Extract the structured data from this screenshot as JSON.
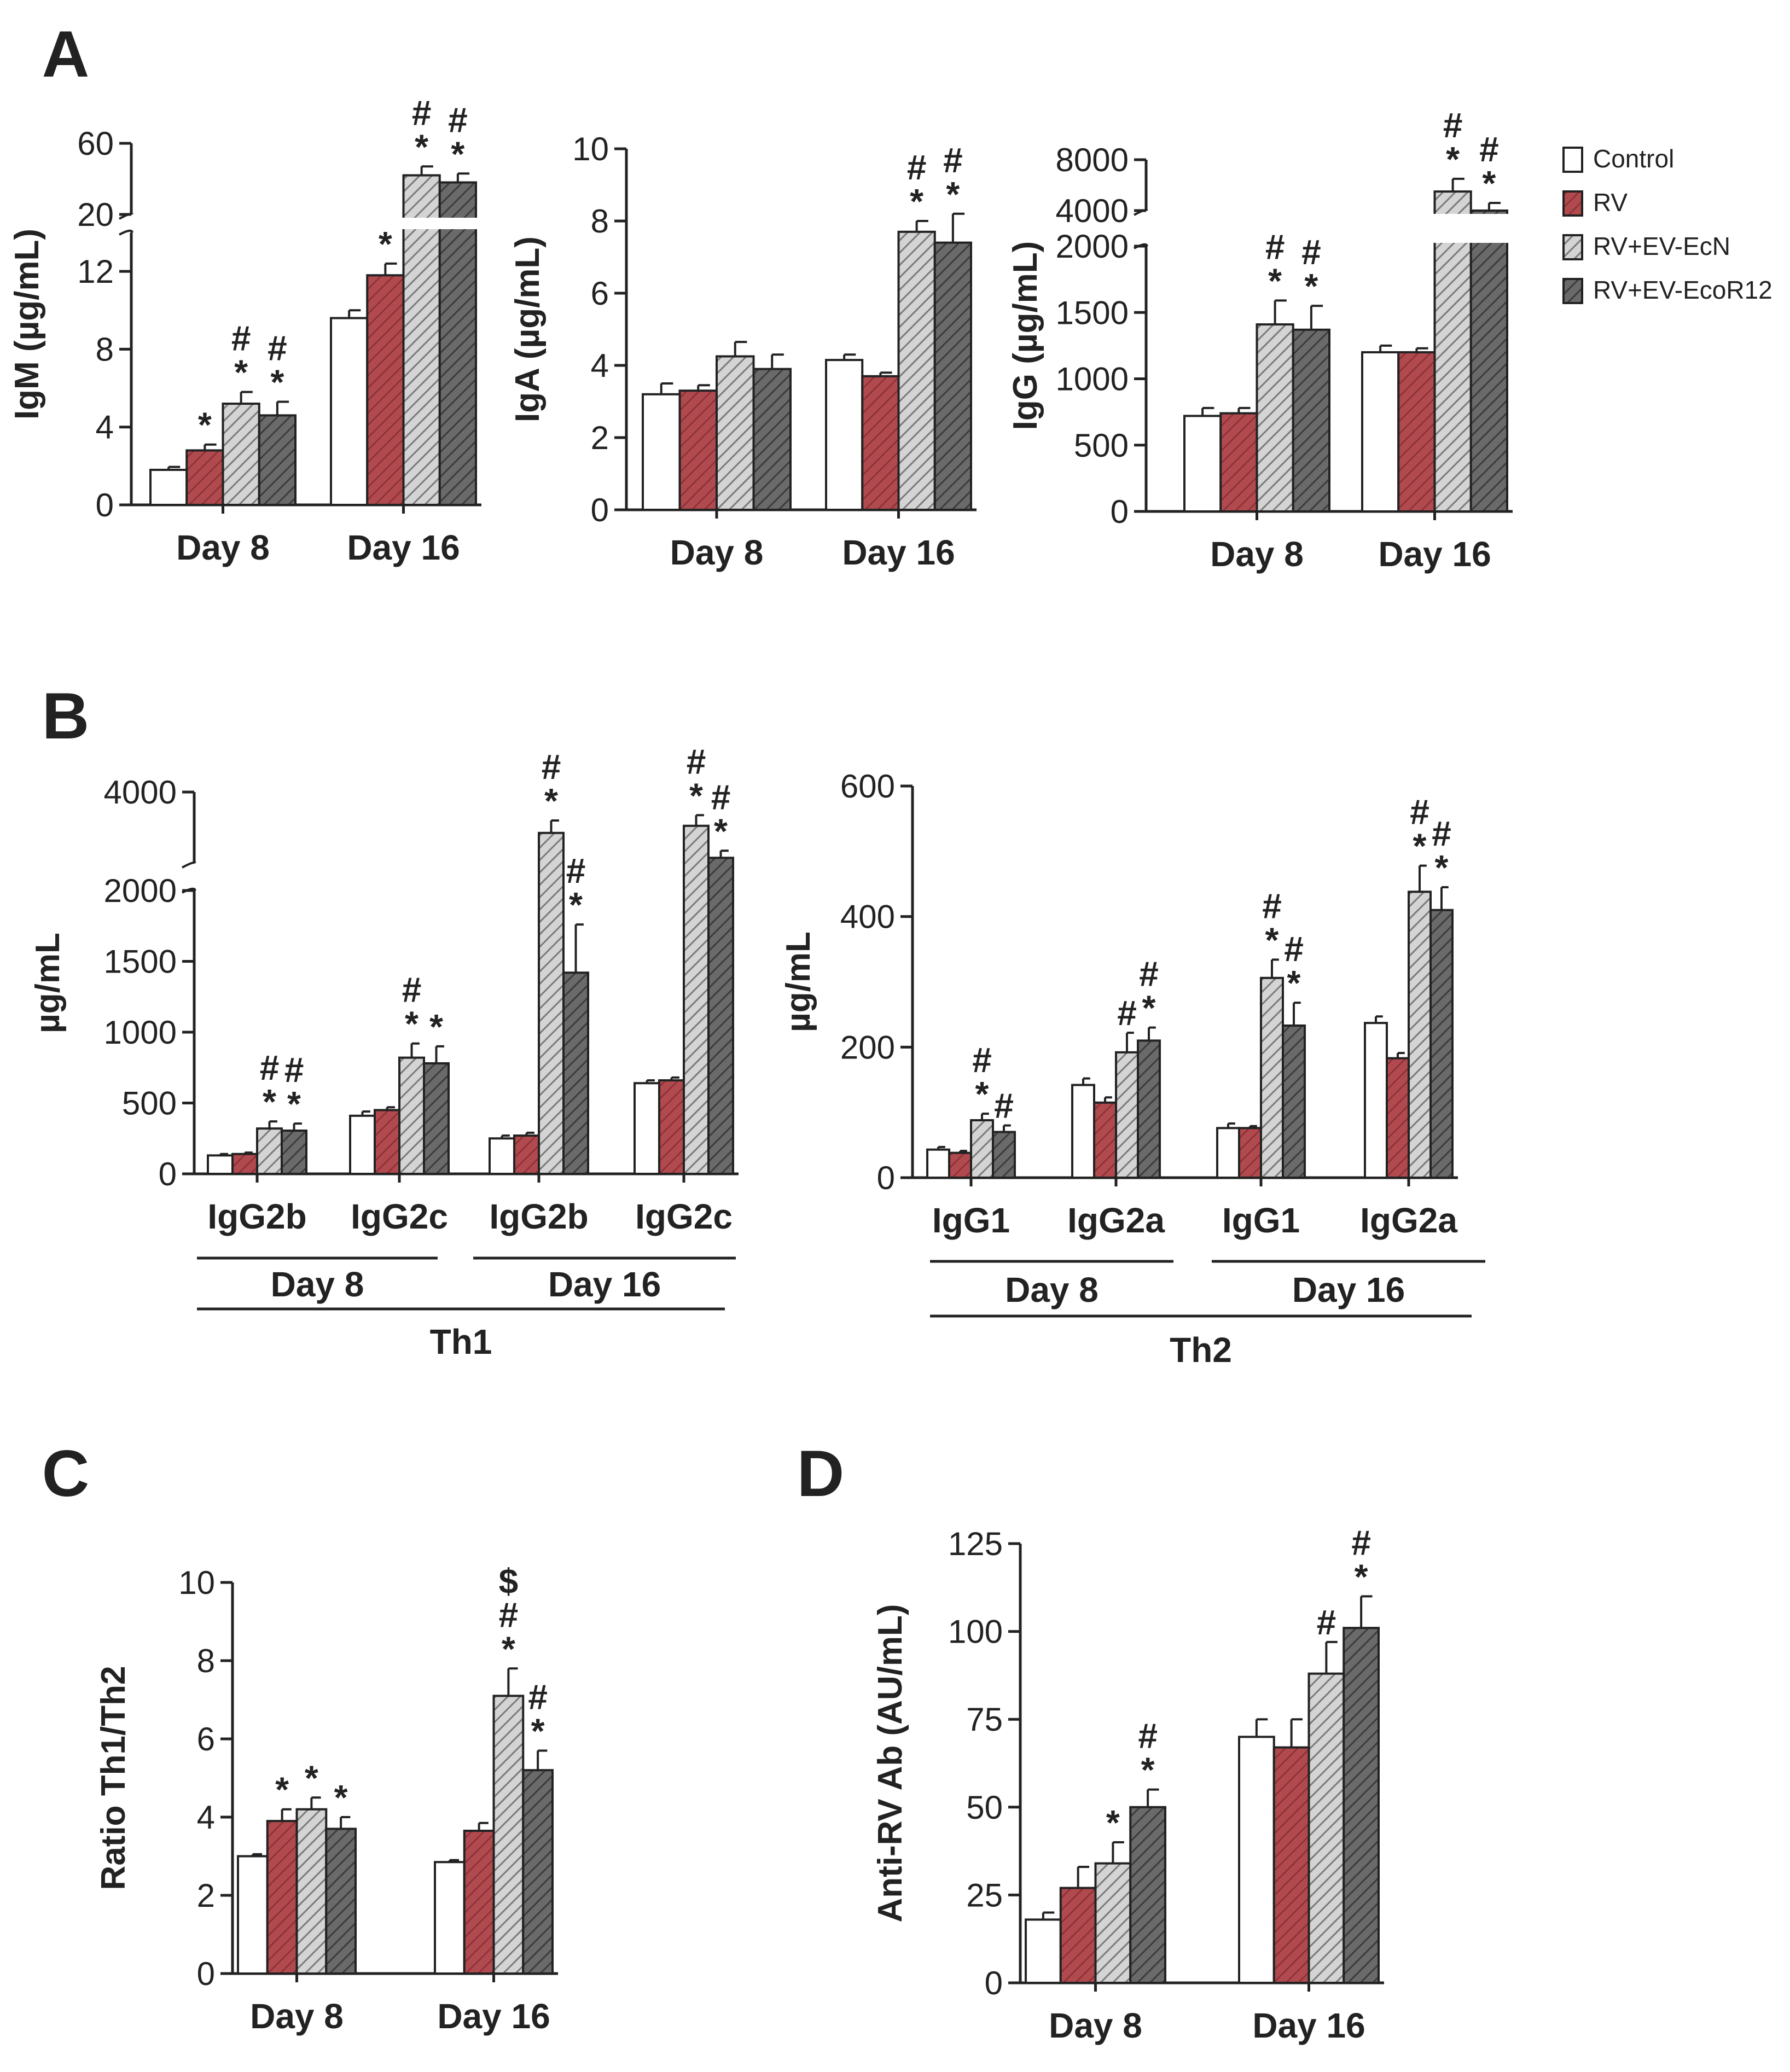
{
  "colors": {
    "control": "#ffffff",
    "rv": "#b04a4f",
    "ecn": "#bfbfbf",
    "ecor": "#606060",
    "axis": "#222222"
  },
  "legend": {
    "position": "top-right",
    "items": [
      {
        "key": "control",
        "label": "Control"
      },
      {
        "key": "rv",
        "label": "RV"
      },
      {
        "key": "ecn",
        "label": "RV+EV-EcN"
      },
      {
        "key": "ecor",
        "label": "RV+EV-EcoR12"
      }
    ]
  },
  "chart_data": [
    {
      "id": "A-IgM",
      "panel_label": "A",
      "type": "bar",
      "ylabel": "IgM (µg/mL)",
      "ylim": [
        0,
        60
      ],
      "axis_break": [
        14,
        20
      ],
      "yticks": [
        "0",
        "4",
        "8",
        "12",
        "20",
        "60"
      ],
      "groups": [
        {
          "label": "Day 8",
          "bars": [
            {
              "series": "control",
              "value": 1.8,
              "err": 0.15,
              "sig": []
            },
            {
              "series": "rv",
              "value": 2.8,
              "err": 0.3,
              "sig": [
                "*"
              ]
            },
            {
              "series": "ecn",
              "value": 5.2,
              "err": 0.6,
              "sig": [
                "#",
                "*"
              ]
            },
            {
              "series": "ecor",
              "value": 4.6,
              "err": 0.7,
              "sig": [
                "#",
                "*"
              ]
            }
          ]
        },
        {
          "label": "Day 16",
          "bars": [
            {
              "series": "control",
              "value": 9.6,
              "err": 0.4,
              "sig": []
            },
            {
              "series": "rv",
              "value": 11.8,
              "err": 0.6,
              "sig": [
                "*"
              ]
            },
            {
              "series": "ecn",
              "value": 42,
              "err": 5,
              "sig": [
                "#",
                "*"
              ]
            },
            {
              "series": "ecor",
              "value": 38,
              "err": 5,
              "sig": [
                "#",
                "*"
              ]
            }
          ]
        }
      ]
    },
    {
      "id": "A-IgA",
      "type": "bar",
      "ylabel": "IgA (µg/mL)",
      "ylim": [
        0,
        10
      ],
      "yticks": [
        "0",
        "2",
        "4",
        "6",
        "8",
        "10"
      ],
      "groups": [
        {
          "label": "Day 8",
          "bars": [
            {
              "series": "control",
              "value": 3.2,
              "err": 0.3,
              "sig": []
            },
            {
              "series": "rv",
              "value": 3.3,
              "err": 0.15,
              "sig": []
            },
            {
              "series": "ecn",
              "value": 4.25,
              "err": 0.4,
              "sig": []
            },
            {
              "series": "ecor",
              "value": 3.9,
              "err": 0.4,
              "sig": []
            }
          ]
        },
        {
          "label": "Day 16",
          "bars": [
            {
              "series": "control",
              "value": 4.15,
              "err": 0.15,
              "sig": []
            },
            {
              "series": "rv",
              "value": 3.7,
              "err": 0.1,
              "sig": []
            },
            {
              "series": "ecn",
              "value": 7.7,
              "err": 0.3,
              "sig": [
                "#",
                "*"
              ]
            },
            {
              "series": "ecor",
              "value": 7.4,
              "err": 0.8,
              "sig": [
                "#",
                "*"
              ]
            }
          ]
        }
      ]
    },
    {
      "id": "A-IgG",
      "type": "bar",
      "ylabel": "IgG (µg/mL)",
      "ylim": [
        0,
        8000
      ],
      "axis_break": [
        2000,
        4000
      ],
      "yticks": [
        "0",
        "500",
        "1000",
        "1500",
        "2000",
        "4000",
        "8000"
      ],
      "groups": [
        {
          "label": "Day 8",
          "bars": [
            {
              "series": "control",
              "value": 720,
              "err": 60,
              "sig": []
            },
            {
              "series": "rv",
              "value": 740,
              "err": 40,
              "sig": []
            },
            {
              "series": "ecn",
              "value": 1410,
              "err": 180,
              "sig": [
                "#",
                "*"
              ]
            },
            {
              "series": "ecor",
              "value": 1370,
              "err": 180,
              "sig": [
                "#",
                "*"
              ]
            }
          ]
        },
        {
          "label": "Day 16",
          "bars": [
            {
              "series": "control",
              "value": 1200,
              "err": 50,
              "sig": []
            },
            {
              "series": "rv",
              "value": 1200,
              "err": 30,
              "sig": []
            },
            {
              "series": "ecn",
              "value": 5500,
              "err": 1000,
              "sig": [
                "#",
                "*"
              ]
            },
            {
              "series": "ecor",
              "value": 4000,
              "err": 600,
              "sig": [
                "#",
                "*"
              ]
            }
          ]
        }
      ]
    },
    {
      "id": "B-Th1",
      "panel_label": "B",
      "type": "bar",
      "ylabel": "µg/mL",
      "ylim": [
        0,
        4000
      ],
      "axis_break": [
        2000,
        2000
      ],
      "yticks": [
        "0",
        "500",
        "1000",
        "1500",
        "2000",
        "4000"
      ],
      "groups": [
        {
          "label": "IgG2b",
          "bars": [
            {
              "series": "control",
              "value": 130,
              "err": 10,
              "sig": []
            },
            {
              "series": "rv",
              "value": 140,
              "err": 10,
              "sig": []
            },
            {
              "series": "ecn",
              "value": 320,
              "err": 50,
              "sig": [
                "#",
                "*"
              ]
            },
            {
              "series": "ecor",
              "value": 305,
              "err": 50,
              "sig": [
                "#",
                "*"
              ]
            }
          ]
        },
        {
          "label": "IgG2c",
          "bars": [
            {
              "series": "control",
              "value": 410,
              "err": 30,
              "sig": []
            },
            {
              "series": "rv",
              "value": 450,
              "err": 20,
              "sig": []
            },
            {
              "series": "ecn",
              "value": 820,
              "err": 100,
              "sig": [
                "#",
                "*"
              ]
            },
            {
              "series": "ecor",
              "value": 780,
              "err": 120,
              "sig": [
                "*"
              ]
            }
          ]
        },
        {
          "label": "IgG2b",
          "bars": [
            {
              "series": "control",
              "value": 250,
              "err": 20,
              "sig": []
            },
            {
              "series": "rv",
              "value": 270,
              "err": 20,
              "sig": []
            },
            {
              "series": "ecn",
              "value": 2850,
              "err": 350,
              "sig": [
                "#",
                "*"
              ]
            },
            {
              "series": "ecor",
              "value": 1420,
              "err": 340,
              "sig": [
                "#",
                "*"
              ]
            }
          ]
        },
        {
          "label": "IgG2c",
          "bars": [
            {
              "series": "control",
              "value": 640,
              "err": 20,
              "sig": []
            },
            {
              "series": "rv",
              "value": 660,
              "err": 20,
              "sig": []
            },
            {
              "series": "ecn",
              "value": 3050,
              "err": 300,
              "sig": [
                "#",
                "*"
              ]
            },
            {
              "series": "ecor",
              "value": 2150,
              "err": 200,
              "sig": [
                "#",
                "*"
              ]
            }
          ]
        }
      ],
      "brackets": [
        {
          "label": "Day 8"
        },
        {
          "label": "Day 16"
        },
        {
          "label": "Th1"
        }
      ]
    },
    {
      "id": "B-Th2",
      "type": "bar",
      "ylabel": "µg/mL",
      "ylim": [
        0,
        600
      ],
      "yticks": [
        "0",
        "200",
        "400",
        "600"
      ],
      "groups": [
        {
          "label": "IgG1",
          "bars": [
            {
              "series": "control",
              "value": 43,
              "err": 4,
              "sig": []
            },
            {
              "series": "rv",
              "value": 38,
              "err": 3,
              "sig": []
            },
            {
              "series": "ecn",
              "value": 88,
              "err": 10,
              "sig": [
                "#",
                "*"
              ]
            },
            {
              "series": "ecor",
              "value": 70,
              "err": 10,
              "sig": [
                "#"
              ]
            }
          ]
        },
        {
          "label": "IgG2a",
          "bars": [
            {
              "series": "control",
              "value": 142,
              "err": 10,
              "sig": []
            },
            {
              "series": "rv",
              "value": 115,
              "err": 8,
              "sig": []
            },
            {
              "series": "ecn",
              "value": 192,
              "err": 30,
              "sig": [
                "#"
              ]
            },
            {
              "series": "ecor",
              "value": 210,
              "err": 20,
              "sig": [
                "#",
                "*"
              ]
            }
          ]
        },
        {
          "label": "IgG1",
          "bars": [
            {
              "series": "control",
              "value": 76,
              "err": 7,
              "sig": []
            },
            {
              "series": "rv",
              "value": 76,
              "err": 3,
              "sig": []
            },
            {
              "series": "ecn",
              "value": 306,
              "err": 28,
              "sig": [
                "#",
                "*"
              ]
            },
            {
              "series": "ecor",
              "value": 233,
              "err": 35,
              "sig": [
                "#",
                "*"
              ]
            }
          ]
        },
        {
          "label": "IgG2a",
          "bars": [
            {
              "series": "control",
              "value": 237,
              "err": 10,
              "sig": []
            },
            {
              "series": "rv",
              "value": 183,
              "err": 8,
              "sig": []
            },
            {
              "series": "ecn",
              "value": 438,
              "err": 40,
              "sig": [
                "#",
                "*"
              ]
            },
            {
              "series": "ecor",
              "value": 410,
              "err": 35,
              "sig": [
                "#",
                "*"
              ]
            }
          ]
        }
      ],
      "brackets": [
        {
          "label": "Day 8"
        },
        {
          "label": "Day 16"
        },
        {
          "label": "Th2"
        }
      ]
    },
    {
      "id": "C",
      "panel_label": "C",
      "type": "bar",
      "ylabel": "Ratio Th1/Th2",
      "ylim": [
        0,
        10
      ],
      "yticks": [
        "0",
        "2",
        "4",
        "6",
        "8",
        "10"
      ],
      "groups": [
        {
          "label": "Day 8",
          "bars": [
            {
              "series": "control",
              "value": 3.0,
              "err": 0.05,
              "sig": []
            },
            {
              "series": "rv",
              "value": 3.9,
              "err": 0.3,
              "sig": [
                "*"
              ]
            },
            {
              "series": "ecn",
              "value": 4.2,
              "err": 0.3,
              "sig": [
                "*"
              ]
            },
            {
              "series": "ecor",
              "value": 3.7,
              "err": 0.3,
              "sig": [
                "*"
              ]
            }
          ]
        },
        {
          "label": "Day 16",
          "bars": [
            {
              "series": "control",
              "value": 2.85,
              "err": 0.05,
              "sig": []
            },
            {
              "series": "rv",
              "value": 3.65,
              "err": 0.2,
              "sig": []
            },
            {
              "series": "ecn",
              "value": 7.1,
              "err": 0.7,
              "sig": [
                "$",
                "#",
                "*"
              ]
            },
            {
              "series": "ecor",
              "value": 5.2,
              "err": 0.5,
              "sig": [
                "#",
                "*"
              ]
            }
          ]
        }
      ]
    },
    {
      "id": "D",
      "panel_label": "D",
      "type": "bar",
      "ylabel": "Anti-RV Ab (AU/mL)",
      "ylim": [
        0,
        125
      ],
      "yticks": [
        "0",
        "25",
        "50",
        "75",
        "100",
        "125"
      ],
      "groups": [
        {
          "label": "Day 8",
          "bars": [
            {
              "series": "control",
              "value": 18,
              "err": 2,
              "sig": []
            },
            {
              "series": "rv",
              "value": 27,
              "err": 6,
              "sig": []
            },
            {
              "series": "ecn",
              "value": 34,
              "err": 6,
              "sig": [
                "*"
              ]
            },
            {
              "series": "ecor",
              "value": 50,
              "err": 5,
              "sig": [
                "#",
                "*"
              ]
            }
          ]
        },
        {
          "label": "Day 16",
          "bars": [
            {
              "series": "control",
              "value": 70,
              "err": 5,
              "sig": []
            },
            {
              "series": "rv",
              "value": 67,
              "err": 8,
              "sig": []
            },
            {
              "series": "ecn",
              "value": 88,
              "err": 9,
              "sig": [
                "#"
              ]
            },
            {
              "series": "ecor",
              "value": 101,
              "err": 9,
              "sig": [
                "#",
                "*"
              ]
            }
          ]
        }
      ]
    }
  ]
}
